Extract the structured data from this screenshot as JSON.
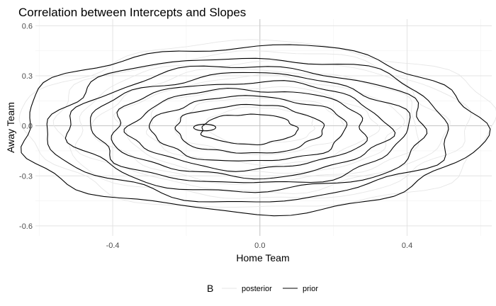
{
  "chart_data": {
    "type": "contour",
    "title": "Correlation between Intercepts and Slopes",
    "xlabel": "Home Team",
    "ylabel": "Away Team",
    "xlim": [
      -0.61,
      0.63
    ],
    "ylim": [
      -0.66,
      0.64
    ],
    "x_ticks": [
      -0.4,
      0.0,
      0.4
    ],
    "x_tick_labels": [
      "-0.4",
      "0.0",
      "0.4"
    ],
    "y_ticks": [
      -0.6,
      -0.3,
      0.0,
      0.3,
      0.6
    ],
    "y_tick_labels": [
      "-0.6",
      "-0.3",
      "0.0",
      "0.3",
      "0.6"
    ],
    "grid": true,
    "legend": {
      "title": "B",
      "position": "bottom",
      "entries": [
        {
          "name": "posterior",
          "color": "#e6e6e6"
        },
        {
          "name": "prior",
          "color": "#000000"
        }
      ]
    },
    "series": [
      {
        "name": "prior",
        "color": "#000000",
        "center": [
          -0.03,
          -0.02
        ],
        "levels": [
          {
            "rx": 0.625,
            "ry": 0.5
          },
          {
            "rx": 0.545,
            "ry": 0.43
          },
          {
            "rx": 0.485,
            "ry": 0.375
          },
          {
            "rx": 0.43,
            "ry": 0.33
          },
          {
            "rx": 0.375,
            "ry": 0.285
          },
          {
            "rx": 0.32,
            "ry": 0.24
          },
          {
            "rx": 0.265,
            "ry": 0.195
          },
          {
            "rx": 0.2,
            "ry": 0.145
          },
          {
            "rx": 0.13,
            "ry": 0.09
          }
        ],
        "peak": {
          "x": -0.15,
          "y": -0.01,
          "rx": 0.03,
          "ry": 0.02
        }
      },
      {
        "name": "posterior",
        "color": "#e6e6e6",
        "center": [
          0.0,
          0.0
        ],
        "levels": [
          {
            "rx": 0.64,
            "ry": 0.5
          },
          {
            "rx": 0.56,
            "ry": 0.44
          },
          {
            "rx": 0.5,
            "ry": 0.39
          },
          {
            "rx": 0.44,
            "ry": 0.34
          },
          {
            "rx": 0.38,
            "ry": 0.29
          },
          {
            "rx": 0.31,
            "ry": 0.23
          },
          {
            "rx": 0.23,
            "ry": 0.17
          },
          {
            "rx": 0.15,
            "ry": 0.11
          }
        ]
      }
    ]
  }
}
